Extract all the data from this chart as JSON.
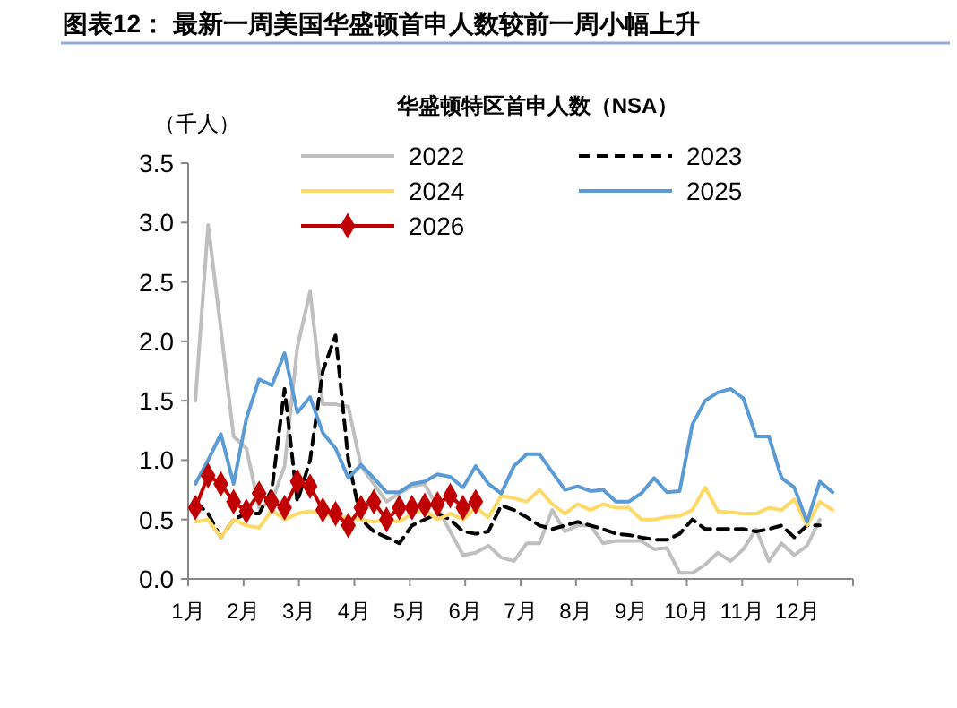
{
  "chart_data": {
    "type": "line",
    "title": "图表12：  最新一周美国华盛顿首申人数较前一周小幅上升",
    "subtitle": "华盛顿特区首申人数（NSA）",
    "ylabel": "（千人）",
    "x": [
      1.13,
      1.36,
      1.59,
      1.82,
      2.05,
      2.28,
      2.51,
      2.74,
      2.97,
      3.2,
      3.43,
      3.66,
      3.89,
      4.12,
      4.35,
      4.58,
      4.81,
      5.04,
      5.27,
      5.5,
      5.73,
      5.96,
      6.19,
      6.42,
      6.65,
      6.88,
      7.11,
      7.34,
      7.57,
      7.8,
      8.03,
      8.26,
      8.49,
      8.72,
      8.95,
      9.18,
      9.41,
      9.64,
      9.87,
      10.1,
      10.33,
      10.56,
      10.79,
      11.02,
      11.25,
      11.48,
      11.71,
      11.94,
      12.17,
      12.4,
      12.63
    ],
    "series": [
      {
        "name": "2022",
        "color": "#bfbfbf",
        "line_style": "solid",
        "marker": "none",
        "values": [
          1.5,
          2.98,
          2.1,
          1.2,
          1.1,
          0.6,
          0.65,
          0.95,
          1.95,
          2.42,
          1.47,
          1.47,
          1.45,
          0.95,
          0.8,
          0.65,
          0.72,
          0.78,
          0.8,
          0.6,
          0.4,
          0.2,
          0.22,
          0.28,
          0.18,
          0.15,
          0.3,
          0.3,
          0.58,
          0.4,
          0.45,
          0.45,
          0.3,
          0.32,
          0.32,
          0.32,
          0.25,
          0.26,
          0.05,
          0.05,
          0.12,
          0.22,
          0.15,
          0.25,
          0.42,
          0.15,
          0.3,
          0.2,
          0.28,
          0.5,
          null
        ]
      },
      {
        "name": "2023",
        "color": "#000000",
        "line_style": "dashed",
        "marker": "none",
        "values": [
          0.65,
          0.55,
          0.35,
          0.5,
          0.55,
          0.55,
          0.75,
          1.6,
          0.65,
          1.0,
          1.75,
          2.05,
          1.0,
          0.5,
          0.4,
          0.35,
          0.3,
          0.45,
          0.5,
          0.55,
          0.5,
          0.4,
          0.38,
          0.4,
          0.62,
          0.58,
          0.52,
          0.45,
          0.42,
          0.45,
          0.48,
          0.45,
          0.42,
          0.38,
          0.37,
          0.35,
          0.33,
          0.33,
          0.38,
          0.5,
          0.42,
          0.42,
          0.42,
          0.42,
          0.4,
          0.42,
          0.45,
          0.35,
          0.45,
          0.45,
          null
        ]
      },
      {
        "name": "2024",
        "color": "#ffd966",
        "line_style": "solid",
        "marker": "none",
        "values": [
          0.48,
          0.5,
          0.35,
          0.5,
          0.45,
          0.43,
          0.58,
          0.5,
          0.55,
          0.57,
          0.55,
          0.52,
          0.52,
          0.5,
          0.48,
          0.5,
          0.48,
          0.55,
          0.58,
          0.5,
          0.55,
          0.5,
          0.6,
          0.52,
          0.7,
          0.68,
          0.65,
          0.75,
          0.63,
          0.55,
          0.63,
          0.58,
          0.63,
          0.6,
          0.6,
          0.5,
          0.5,
          0.52,
          0.53,
          0.58,
          0.77,
          0.57,
          0.56,
          0.55,
          0.55,
          0.6,
          0.58,
          0.67,
          0.45,
          0.65,
          0.58
        ]
      },
      {
        "name": "2025",
        "color": "#5b9bd5",
        "line_style": "solid",
        "marker": "none",
        "values": [
          0.8,
          1.0,
          1.22,
          0.8,
          1.35,
          1.68,
          1.63,
          1.9,
          1.4,
          1.53,
          1.23,
          1.1,
          0.85,
          0.96,
          0.85,
          0.73,
          0.73,
          0.8,
          0.82,
          0.88,
          0.86,
          0.77,
          0.95,
          0.8,
          0.72,
          0.95,
          1.05,
          1.05,
          0.9,
          0.75,
          0.78,
          0.74,
          0.75,
          0.65,
          0.65,
          0.72,
          0.85,
          0.73,
          0.74,
          1.3,
          1.5,
          1.57,
          1.6,
          1.52,
          1.2,
          1.2,
          0.85,
          0.77,
          0.48,
          0.82,
          0.73
        ]
      },
      {
        "name": "2026",
        "color": "#c00000",
        "line_style": "solid",
        "marker": "diamond",
        "values": [
          0.6,
          0.87,
          0.8,
          0.65,
          0.57,
          0.72,
          0.65,
          0.6,
          0.82,
          0.78,
          0.58,
          0.55,
          0.45,
          0.6,
          0.65,
          0.5,
          0.6,
          0.6,
          0.62,
          0.63,
          0.7,
          0.6,
          0.65,
          null,
          null,
          null,
          null,
          null,
          null,
          null,
          null,
          null,
          null,
          null,
          null,
          null,
          null,
          null,
          null,
          null,
          null,
          null,
          null,
          null,
          null,
          null,
          null,
          null,
          null,
          null,
          null
        ]
      }
    ],
    "xlim": [
      1,
      13
    ],
    "xticks": [
      {
        "value": 1,
        "label": "1月"
      },
      {
        "value": 2,
        "label": "2月"
      },
      {
        "value": 3,
        "label": "3月"
      },
      {
        "value": 4,
        "label": "4月"
      },
      {
        "value": 5,
        "label": "5月"
      },
      {
        "value": 6,
        "label": "6月"
      },
      {
        "value": 7,
        "label": "7月"
      },
      {
        "value": 8,
        "label": "8月"
      },
      {
        "value": 9,
        "label": "9月"
      },
      {
        "value": 10,
        "label": "10月"
      },
      {
        "value": 11,
        "label": "11月"
      },
      {
        "value": 12,
        "label": "12月"
      },
      {
        "value": 13,
        "label": null
      }
    ],
    "ylim": [
      0,
      3.5
    ],
    "yticks": [
      {
        "value": 0,
        "label": "0.0"
      },
      {
        "value": 0.5,
        "label": "0.5"
      },
      {
        "value": 1,
        "label": "1.0"
      },
      {
        "value": 1.5,
        "label": "1.5"
      },
      {
        "value": 2,
        "label": "2.0"
      },
      {
        "value": 2.5,
        "label": "2.5"
      },
      {
        "value": 3,
        "label": "3.0"
      },
      {
        "value": 3.5,
        "label": "3.5"
      }
    ],
    "grid": false,
    "legend": "top"
  }
}
